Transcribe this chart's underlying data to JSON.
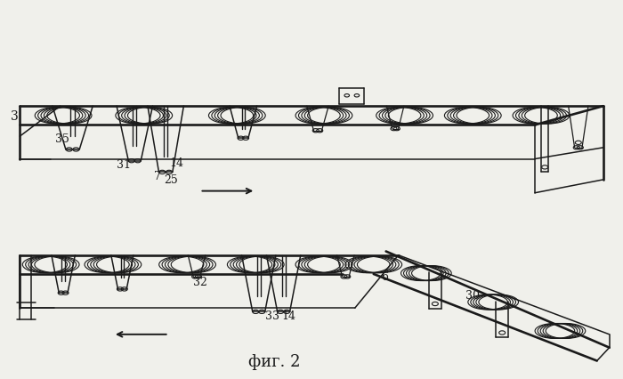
{
  "bg_color": "#f0f0eb",
  "line_color": "#1a1a1a",
  "title": "фиг. 2",
  "figsize": [
    7.0,
    4.27
  ],
  "dpi": 100,
  "label_fontsize": 9,
  "title_fontsize": 13
}
